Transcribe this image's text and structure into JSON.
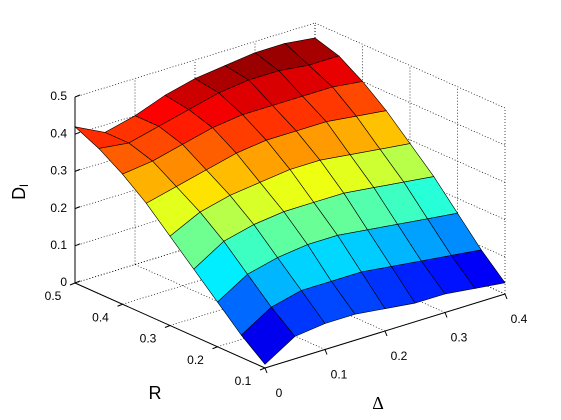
{
  "chart_data": {
    "type": "surface",
    "xlabel": "Δ",
    "ylabel": "R",
    "zlabel": "D",
    "zlabel_subscript": "l",
    "x": [
      0,
      0.05,
      0.1,
      0.15,
      0.2,
      0.25,
      0.3,
      0.35,
      0.4
    ],
    "y": [
      0.1,
      0.15,
      0.2,
      0.25,
      0.3,
      0.35,
      0.4,
      0.45,
      0.5
    ],
    "z": [
      [
        0.01,
        0.06,
        0.07,
        0.07,
        0.06,
        0.05,
        0.05,
        0.04,
        0.03
      ],
      [
        0.06,
        0.11,
        0.13,
        0.13,
        0.13,
        0.12,
        0.11,
        0.1,
        0.09
      ],
      [
        0.12,
        0.17,
        0.19,
        0.2,
        0.2,
        0.19,
        0.18,
        0.17,
        0.16
      ],
      [
        0.18,
        0.23,
        0.25,
        0.26,
        0.26,
        0.26,
        0.25,
        0.24,
        0.23
      ],
      [
        0.24,
        0.28,
        0.3,
        0.31,
        0.32,
        0.32,
        0.31,
        0.3,
        0.29
      ],
      [
        0.3,
        0.32,
        0.34,
        0.36,
        0.37,
        0.37,
        0.37,
        0.36,
        0.35
      ],
      [
        0.35,
        0.36,
        0.38,
        0.4,
        0.41,
        0.41,
        0.41,
        0.41,
        0.4
      ],
      [
        0.39,
        0.38,
        0.4,
        0.42,
        0.44,
        0.45,
        0.45,
        0.44,
        0.44
      ],
      [
        0.42,
        0.38,
        0.4,
        0.43,
        0.45,
        0.46,
        0.47,
        0.47,
        0.46
      ]
    ],
    "xlim": [
      0,
      0.4
    ],
    "ylim": [
      0.1,
      0.5
    ],
    "zlim": [
      0,
      0.5
    ],
    "xticks": [
      0,
      0.1,
      0.2,
      0.3,
      0.4
    ],
    "yticks": [
      0.1,
      0.2,
      0.3,
      0.4,
      0.5
    ],
    "zticks": [
      0,
      0.1,
      0.2,
      0.3,
      0.4,
      0.5
    ],
    "colormap": "jet",
    "grid": true
  }
}
